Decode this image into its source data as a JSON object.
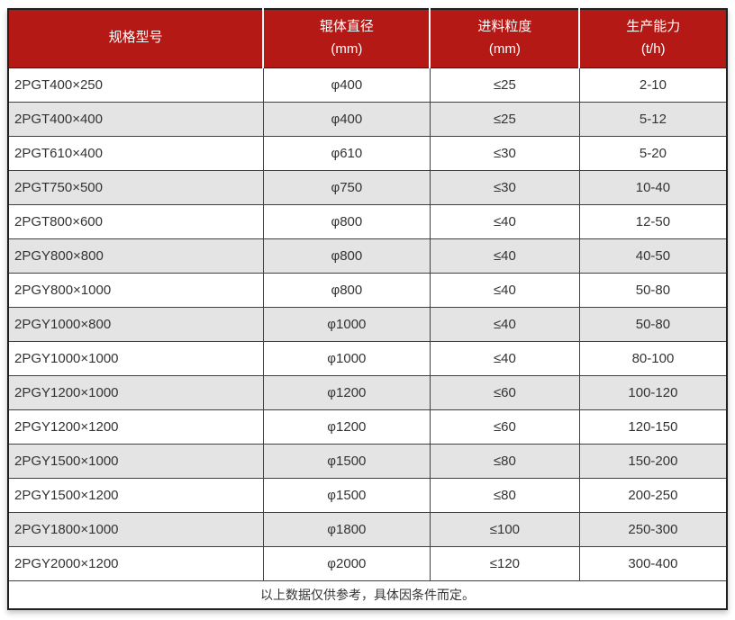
{
  "colors": {
    "header_bg": "#b51916",
    "header_text": "#ffffff",
    "row_alt_bg": "#e4e4e4",
    "border_dark": "#1f1f1f",
    "border_inner": "#404040",
    "body_text": "#333333"
  },
  "table": {
    "columns": [
      {
        "label": "规格型号",
        "unit": ""
      },
      {
        "label": "辊体直径",
        "unit": "(mm)"
      },
      {
        "label": "进料粒度",
        "unit": "(mm)"
      },
      {
        "label": "生产能力",
        "unit": "(t/h)"
      }
    ],
    "rows": [
      {
        "model": "2PGT400×250",
        "roller_diameter": "φ400",
        "feed_size": "≤25",
        "capacity": "2-10"
      },
      {
        "model": "2PGT400×400",
        "roller_diameter": "φ400",
        "feed_size": "≤25",
        "capacity": "5-12"
      },
      {
        "model": "2PGT610×400",
        "roller_diameter": "φ610",
        "feed_size": "≤30",
        "capacity": "5-20"
      },
      {
        "model": "2PGT750×500",
        "roller_diameter": "φ750",
        "feed_size": "≤30",
        "capacity": "10-40"
      },
      {
        "model": "2PGT800×600",
        "roller_diameter": "φ800",
        "feed_size": "≤40",
        "capacity": "12-50"
      },
      {
        "model": "2PGY800×800",
        "roller_diameter": "φ800",
        "feed_size": "≤40",
        "capacity": "40-50"
      },
      {
        "model": "2PGY800×1000",
        "roller_diameter": "φ800",
        "feed_size": "≤40",
        "capacity": "50-80"
      },
      {
        "model": "2PGY1000×800",
        "roller_diameter": "φ1000",
        "feed_size": "≤40",
        "capacity": "50-80"
      },
      {
        "model": "2PGY1000×1000",
        "roller_diameter": "φ1000",
        "feed_size": "≤40",
        "capacity": "80-100"
      },
      {
        "model": "2PGY1200×1000",
        "roller_diameter": "φ1200",
        "feed_size": "≤60",
        "capacity": "100-120"
      },
      {
        "model": "2PGY1200×1200",
        "roller_diameter": "φ1200",
        "feed_size": "≤60",
        "capacity": "120-150"
      },
      {
        "model": "2PGY1500×1000",
        "roller_diameter": "φ1500",
        "feed_size": "≤80",
        "capacity": "150-200"
      },
      {
        "model": "2PGY1500×1200",
        "roller_diameter": "φ1500",
        "feed_size": "≤80",
        "capacity": "200-250"
      },
      {
        "model": "2PGY1800×1000",
        "roller_diameter": "φ1800",
        "feed_size": "≤100",
        "capacity": "250-300"
      },
      {
        "model": "2PGY2000×1200",
        "roller_diameter": "φ2000",
        "feed_size": "≤120",
        "capacity": "300-400"
      }
    ],
    "footer_note": "以上数据仅供参考，具体因条件而定。"
  }
}
